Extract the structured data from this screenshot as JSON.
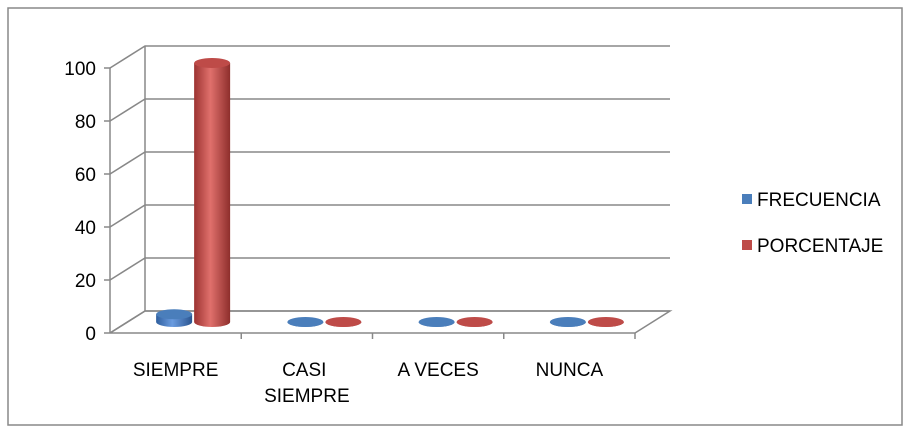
{
  "chart_data": {
    "type": "bar3d",
    "categories": [
      "SIEMPRE",
      "CASI SIEMPRE",
      "A VECES",
      "NUNCA"
    ],
    "series": [
      {
        "name": "FRECUENCIA",
        "color": "#4a7ebb",
        "values": [
          3,
          0,
          0,
          0
        ]
      },
      {
        "name": "PORCENTAJE",
        "color": "#be4b48",
        "values": [
          100,
          0,
          0,
          0
        ]
      }
    ],
    "ylim": [
      0,
      100
    ],
    "yticks": [
      0,
      20,
      40,
      60,
      80,
      100
    ],
    "grid": true,
    "legend": "right"
  }
}
